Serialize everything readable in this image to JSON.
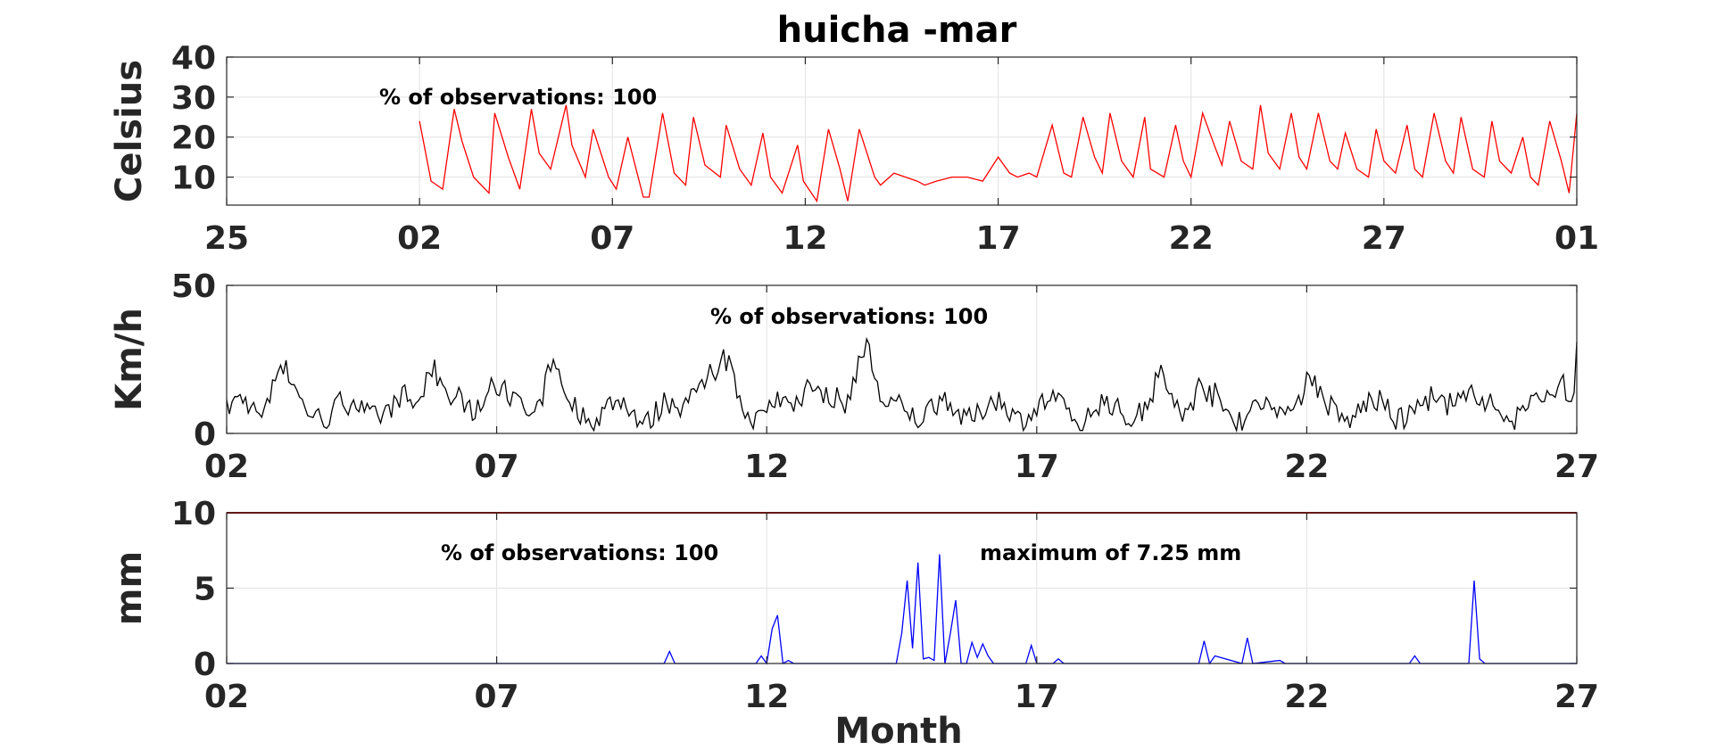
{
  "title": "huicha -mar",
  "xlabel": "Month",
  "chart_data": [
    {
      "type": "line",
      "ylabel": "Celsius",
      "ylim": [
        3,
        40
      ],
      "yticks": [
        "10",
        "20",
        "30",
        "40"
      ],
      "xlim": [
        -4,
        31
      ],
      "xticks": [
        "25",
        "02",
        "07",
        "12",
        "17",
        "22",
        "27",
        "01"
      ],
      "grid": true,
      "color": "#ff0000",
      "annotations": [
        "% of observations: 100"
      ],
      "x": [
        1.0,
        1.3,
        1.6,
        1.9,
        2.1,
        2.4,
        2.8,
        2.95,
        3.3,
        3.6,
        3.9,
        4.1,
        4.4,
        4.8,
        4.95,
        5.3,
        5.5,
        5.9,
        6.1,
        6.4,
        6.8,
        6.95,
        7.3,
        7.6,
        7.9,
        8.1,
        8.4,
        8.8,
        8.95,
        9.3,
        9.6,
        9.9,
        10.1,
        10.4,
        10.8,
        10.95,
        11.3,
        11.6,
        11.9,
        12.1,
        12.4,
        12.8,
        12.95,
        13.3,
        13.6,
        13.9,
        14.1,
        14.4,
        14.8,
        15.2,
        15.6,
        16.0,
        16.3,
        16.5,
        16.8,
        17.0,
        17.4,
        17.7,
        17.9,
        18.2,
        18.5,
        18.7,
        18.9,
        19.2,
        19.5,
        19.8,
        19.95,
        20.3,
        20.6,
        20.8,
        21.0,
        21.3,
        21.6,
        21.8,
        22.0,
        22.3,
        22.6,
        22.8,
        23.0,
        23.3,
        23.6,
        23.8,
        24.0,
        24.3,
        24.6,
        24.8,
        25.0,
        25.3,
        25.6,
        25.8,
        26.0,
        26.3,
        26.6,
        26.8,
        27.0,
        27.3,
        27.6,
        27.8,
        28.0,
        28.3,
        28.6,
        28.8,
        29.0,
        29.3,
        29.6,
        29.8,
        30.0,
        30.3,
        30.6,
        30.8,
        31.0
      ],
      "y": [
        24,
        9,
        7,
        27,
        19,
        10,
        6,
        26,
        15,
        7,
        27,
        16,
        12,
        28,
        18,
        10,
        22,
        10,
        7,
        20,
        5,
        5,
        26,
        11,
        8,
        25,
        13,
        10,
        23,
        12,
        8,
        21,
        10,
        6,
        18,
        9,
        4,
        22,
        12,
        4,
        22,
        10,
        8,
        11,
        10,
        9,
        8,
        9,
        10,
        10,
        9,
        15,
        11,
        10,
        11,
        10,
        23,
        11,
        10,
        25,
        15,
        11,
        26,
        14,
        10,
        25,
        12,
        10,
        23,
        14,
        10,
        26,
        18,
        13,
        24,
        14,
        12,
        28,
        16,
        12,
        26,
        15,
        12,
        26,
        14,
        12,
        21,
        12,
        10,
        22,
        14,
        11,
        23,
        12,
        10,
        26,
        14,
        11,
        25,
        12,
        10,
        24,
        14,
        11,
        20,
        10,
        8,
        24,
        14,
        6,
        26
      ],
      "_": "x values in days of March"
    },
    {
      "type": "line",
      "ylabel": "Km/h",
      "ylim": [
        0,
        50
      ],
      "yticks": [
        "0",
        "50"
      ],
      "xlim": [
        2,
        27
      ],
      "xticks": [
        "02",
        "07",
        "12",
        "17",
        "22",
        "27"
      ],
      "grid": true,
      "color": "#000000",
      "annotations": [
        "% of observations: 100"
      ]
    },
    {
      "type": "line",
      "ylabel": "mm",
      "ylim": [
        0,
        10
      ],
      "yticks": [
        "0",
        "5",
        "10"
      ],
      "xlim": [
        2,
        27
      ],
      "xticks": [
        "02",
        "07",
        "12",
        "17",
        "22",
        "27"
      ],
      "grid": true,
      "color": "#0000ff",
      "threshold_color": "#cc0000",
      "threshold": 10,
      "annotations": [
        "% of observations: 100",
        "maximum of 7.25 mm"
      ],
      "x": [
        2,
        10.1,
        10.2,
        10.3,
        11.8,
        11.9,
        12.0,
        12.1,
        12.2,
        12.3,
        12.4,
        12.5,
        14.4,
        14.5,
        14.6,
        14.7,
        14.8,
        14.9,
        15.0,
        15.1,
        15.2,
        15.3,
        15.4,
        15.5,
        15.6,
        15.7,
        15.8,
        15.9,
        16.0,
        16.1,
        16.2,
        16.3,
        16.8,
        16.9,
        17.0,
        17.3,
        17.4,
        17.5,
        20.0,
        20.1,
        20.2,
        20.3,
        20.8,
        20.9,
        21.0,
        21.5,
        21.6,
        23.9,
        24.0,
        24.1,
        25.0,
        25.1,
        25.2,
        25.3,
        27
      ],
      "y": [
        0,
        0,
        0.8,
        0,
        0,
        0.5,
        0,
        2.3,
        3.2,
        0,
        0.2,
        0,
        0,
        2,
        5.5,
        1,
        6.7,
        0.3,
        0.4,
        0.2,
        7.25,
        0,
        2,
        4.2,
        0,
        0,
        1.4,
        0.4,
        1.3,
        0.5,
        0,
        0,
        0,
        1.2,
        0,
        0,
        0.3,
        0,
        0,
        1.5,
        0,
        0.5,
        0,
        1.7,
        0,
        0.2,
        0,
        0,
        0.5,
        0,
        0,
        5.5,
        0.3,
        0,
        0
      ]
    }
  ]
}
